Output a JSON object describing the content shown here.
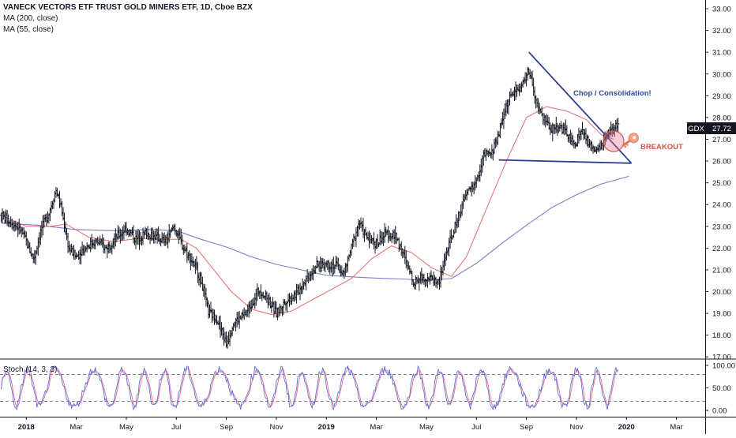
{
  "legend": {
    "title": "VANECK VECTORS ETF TRUST GOLD MINERS ETF, 1D, Cboe BZX",
    "ma200": "MA (200, close)",
    "ma55": "MA (55, close)"
  },
  "stoch": {
    "label": "Stoch (14, 3, 3)",
    "ticks": [
      "100.00",
      "50.00",
      "0.00"
    ]
  },
  "price_badge": {
    "symbol": "GDX",
    "value": "27.72"
  },
  "annotations": {
    "pattern": "Chop / Consolidation!",
    "breakout": "BREAKOUT"
  },
  "colors": {
    "price_bars": "#131722",
    "ma200": "#7b7fc4",
    "ma55": "#e86a6a",
    "trendline": "#2a3f8f",
    "annotation_blue": "#2a4a9a",
    "annotation_red": "#d9534f",
    "stoch_k": "#5b6ee1",
    "stoch_d": "#e86a8a"
  },
  "chart_data": {
    "type": "ohlc",
    "series": [
      {
        "name": "GDX"
      },
      {
        "name": "MA (200, close)"
      },
      {
        "name": "MA (55, close)"
      }
    ],
    "y_ticks": [
      "33.00",
      "32.00",
      "31.00",
      "30.00",
      "29.00",
      "28.00",
      "27.00",
      "26.00",
      "25.00",
      "24.00",
      "23.00",
      "22.00",
      "21.00",
      "20.00",
      "19.00",
      "18.00",
      "17.00"
    ],
    "ylim": [
      16.9,
      33.4
    ],
    "x_ticks": [
      "2018",
      "Mar",
      "May",
      "Jul",
      "Sep",
      "Nov",
      "2019",
      "Mar",
      "May",
      "Jul",
      "Sep",
      "Nov",
      "2020",
      "Mar"
    ],
    "x_tick_months": [
      12,
      14,
      16,
      18,
      20,
      22,
      24,
      26,
      28,
      30,
      32,
      34,
      36,
      38
    ],
    "xlim": [
      10.95,
      39.15
    ],
    "price_keypoints": [
      [
        11.0,
        23.5
      ],
      [
        11.4,
        23.2
      ],
      [
        11.8,
        22.8
      ],
      [
        12.3,
        21.5
      ],
      [
        12.6,
        22.9
      ],
      [
        12.9,
        23.6
      ],
      [
        13.2,
        24.7
      ],
      [
        13.4,
        23.8
      ],
      [
        13.7,
        22.0
      ],
      [
        14.0,
        21.6
      ],
      [
        14.4,
        22.1
      ],
      [
        14.8,
        22.3
      ],
      [
        15.2,
        22.0
      ],
      [
        15.6,
        22.5
      ],
      [
        16.0,
        22.9
      ],
      [
        16.4,
        22.4
      ],
      [
        16.8,
        22.7
      ],
      [
        17.2,
        22.5
      ],
      [
        17.6,
        22.3
      ],
      [
        17.9,
        23.0
      ],
      [
        18.3,
        22.0
      ],
      [
        18.7,
        21.3
      ],
      [
        19.0,
        20.5
      ],
      [
        19.3,
        19.0
      ],
      [
        19.6,
        18.8
      ],
      [
        20.0,
        17.6
      ],
      [
        20.3,
        18.6
      ],
      [
        20.7,
        18.9
      ],
      [
        21.0,
        19.4
      ],
      [
        21.3,
        20.1
      ],
      [
        21.7,
        19.6
      ],
      [
        22.0,
        19.0
      ],
      [
        22.4,
        19.6
      ],
      [
        22.8,
        19.9
      ],
      [
        23.2,
        20.6
      ],
      [
        23.6,
        21.2
      ],
      [
        24.0,
        21.3
      ],
      [
        24.4,
        21.2
      ],
      [
        24.7,
        20.8
      ],
      [
        25.0,
        22.0
      ],
      [
        25.3,
        23.2
      ],
      [
        25.6,
        22.5
      ],
      [
        26.0,
        22.2
      ],
      [
        26.4,
        22.7
      ],
      [
        26.8,
        22.5
      ],
      [
        27.2,
        21.3
      ],
      [
        27.5,
        20.4
      ],
      [
        27.8,
        20.7
      ],
      [
        28.2,
        20.6
      ],
      [
        28.5,
        20.4
      ],
      [
        28.8,
        21.8
      ],
      [
        29.1,
        22.8
      ],
      [
        29.4,
        23.9
      ],
      [
        29.7,
        24.7
      ],
      [
        30.0,
        25.0
      ],
      [
        30.3,
        26.3
      ],
      [
        30.6,
        26.3
      ],
      [
        30.9,
        27.3
      ],
      [
        31.2,
        28.6
      ],
      [
        31.5,
        29.2
      ],
      [
        31.8,
        29.4
      ],
      [
        32.1,
        30.2
      ],
      [
        32.4,
        28.6
      ],
      [
        32.7,
        27.9
      ],
      [
        33.0,
        27.5
      ],
      [
        33.3,
        27.6
      ],
      [
        33.6,
        27.3
      ],
      [
        33.9,
        26.7
      ],
      [
        34.2,
        27.4
      ],
      [
        34.5,
        26.8
      ],
      [
        34.8,
        26.4
      ],
      [
        35.1,
        26.9
      ],
      [
        35.4,
        27.4
      ],
      [
        35.7,
        27.72
      ]
    ],
    "ma200_keypoints": [
      [
        11.0,
        23.15
      ],
      [
        12.5,
        23.05
      ],
      [
        14.0,
        22.85
      ],
      [
        15.5,
        22.8
      ],
      [
        17.0,
        22.85
      ],
      [
        18.0,
        22.8
      ],
      [
        19.0,
        22.4
      ],
      [
        20.0,
        22.05
      ],
      [
        21.0,
        21.6
      ],
      [
        22.0,
        21.25
      ],
      [
        23.0,
        21.0
      ],
      [
        24.0,
        20.75
      ],
      [
        25.0,
        20.68
      ],
      [
        26.0,
        20.62
      ],
      [
        27.0,
        20.58
      ],
      [
        28.0,
        20.52
      ],
      [
        29.0,
        20.6
      ],
      [
        30.0,
        21.3
      ],
      [
        31.0,
        22.2
      ],
      [
        32.0,
        23.05
      ],
      [
        33.0,
        23.85
      ],
      [
        34.0,
        24.45
      ],
      [
        35.0,
        24.95
      ],
      [
        36.1,
        25.3
      ]
    ],
    "ma55_keypoints": [
      [
        11.0,
        23.5
      ],
      [
        12.0,
        23.0
      ],
      [
        13.0,
        23.0
      ],
      [
        13.6,
        23.1
      ],
      [
        14.5,
        22.5
      ],
      [
        15.5,
        22.3
      ],
      [
        16.5,
        22.45
      ],
      [
        17.5,
        22.4
      ],
      [
        18.2,
        22.4
      ],
      [
        18.8,
        22.0
      ],
      [
        19.5,
        21.0
      ],
      [
        20.2,
        20.0
      ],
      [
        21.0,
        19.2
      ],
      [
        21.8,
        18.95
      ],
      [
        22.6,
        19.1
      ],
      [
        23.4,
        19.6
      ],
      [
        24.2,
        20.1
      ],
      [
        25.0,
        20.6
      ],
      [
        25.8,
        21.5
      ],
      [
        26.6,
        22.1
      ],
      [
        27.4,
        21.8
      ],
      [
        28.2,
        21.1
      ],
      [
        29.0,
        20.7
      ],
      [
        29.6,
        21.6
      ],
      [
        30.4,
        23.8
      ],
      [
        31.2,
        26.0
      ],
      [
        32.0,
        28.0
      ],
      [
        32.8,
        28.5
      ],
      [
        33.6,
        28.3
      ],
      [
        34.4,
        27.9
      ],
      [
        35.0,
        27.2
      ],
      [
        35.5,
        27.0
      ]
    ],
    "trendlines": [
      {
        "name": "upper",
        "from": [
          32.1,
          31.0
        ],
        "to": [
          36.2,
          25.9
        ]
      },
      {
        "name": "lower",
        "from": [
          30.9,
          26.05
        ],
        "to": [
          36.2,
          25.9
        ]
      }
    ],
    "stoch_ylim": [
      0,
      100
    ],
    "stoch_levels": [
      80,
      20
    ]
  }
}
